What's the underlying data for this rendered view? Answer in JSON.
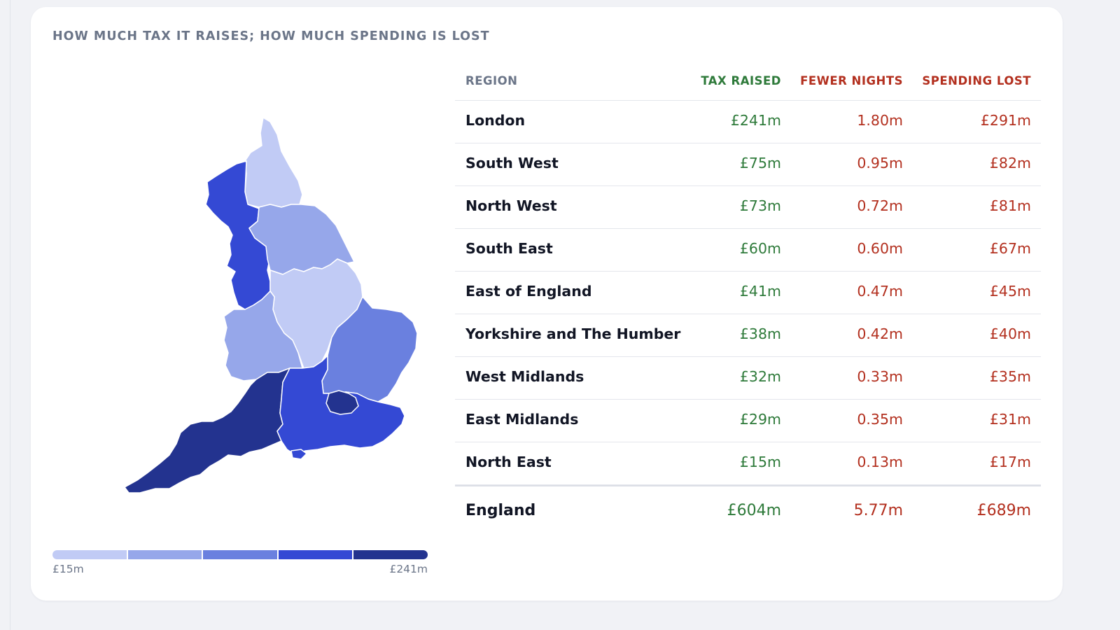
{
  "title": "HOW MUCH TAX IT RAISES; HOW MUCH SPENDING IS LOST",
  "colors": {
    "scale": [
      "#c1cbf5",
      "#96a7ea",
      "#6a80df",
      "#3449d4",
      "#23338f"
    ],
    "green": "#2e7a3a",
    "red": "#b3301f"
  },
  "legend": {
    "min_label": "£15m",
    "max_label": "£241m"
  },
  "table": {
    "headers": {
      "region": "REGION",
      "tax": "TAX RAISED",
      "nights": "FEWER NIGHTS",
      "spend": "SPENDING LOST"
    },
    "rows": [
      {
        "region": "London",
        "tax": "£241m",
        "nights": "1.80m",
        "spend": "£291m"
      },
      {
        "region": "South West",
        "tax": "£75m",
        "nights": "0.95m",
        "spend": "£82m"
      },
      {
        "region": "North West",
        "tax": "£73m",
        "nights": "0.72m",
        "spend": "£81m"
      },
      {
        "region": "South East",
        "tax": "£60m",
        "nights": "0.60m",
        "spend": "£67m"
      },
      {
        "region": "East of England",
        "tax": "£41m",
        "nights": "0.47m",
        "spend": "£45m"
      },
      {
        "region": "Yorkshire and The Humber",
        "tax": "£38m",
        "nights": "0.42m",
        "spend": "£40m"
      },
      {
        "region": "West Midlands",
        "tax": "£32m",
        "nights": "0.33m",
        "spend": "£35m"
      },
      {
        "region": "East Midlands",
        "tax": "£29m",
        "nights": "0.35m",
        "spend": "£31m"
      },
      {
        "region": "North East",
        "tax": "£15m",
        "nights": "0.13m",
        "spend": "£17m"
      }
    ],
    "total": {
      "region": "England",
      "tax": "£604m",
      "nights": "5.77m",
      "spend": "£689m"
    }
  }
}
